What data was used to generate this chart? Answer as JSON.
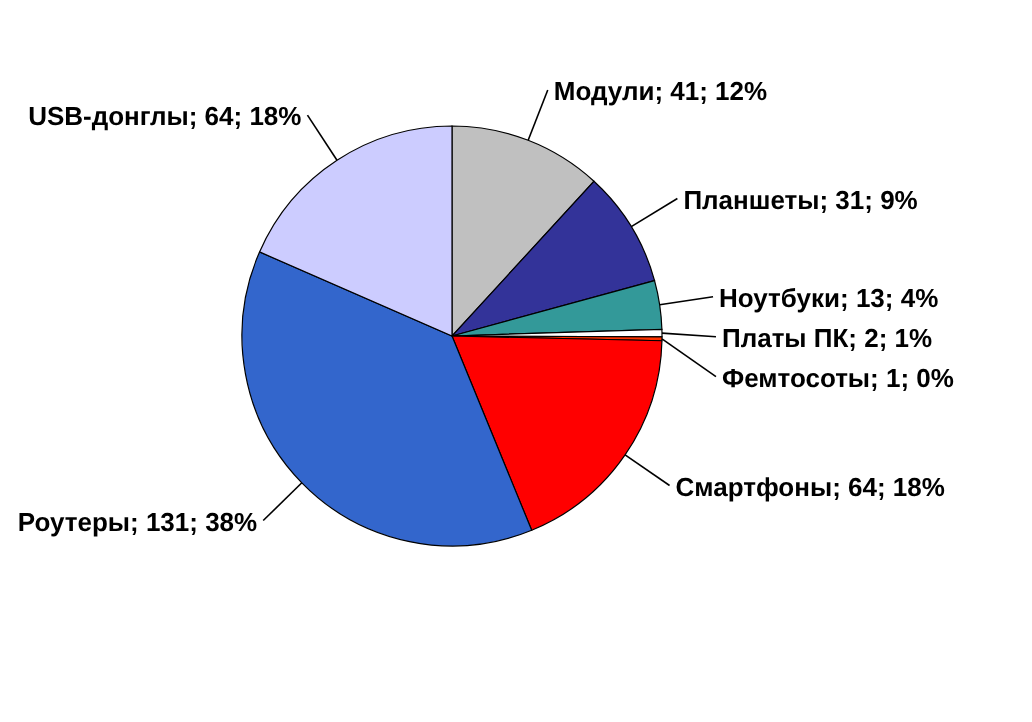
{
  "chart_data": {
    "type": "pie",
    "categories": [
      "Модули",
      "Планшеты",
      "Ноутбуки",
      "Платы ПК",
      "Фемтосоты",
      "Смартфоны",
      "Роутеры",
      "USB-донглы"
    ],
    "values": [
      41,
      31,
      13,
      2,
      1,
      64,
      131,
      64
    ],
    "value_labels": [
      "41; 12%",
      "31; 9%",
      "13; 4%",
      "2; 1%",
      "1; 0%",
      "64; 18%",
      "131; 38%",
      "64; 18%"
    ],
    "colors": [
      "#c0c0c0",
      "#333399",
      "#339999",
      "#ffffff",
      "#ff3300",
      "#ff0000",
      "#3366cc",
      "#ccccff"
    ]
  }
}
